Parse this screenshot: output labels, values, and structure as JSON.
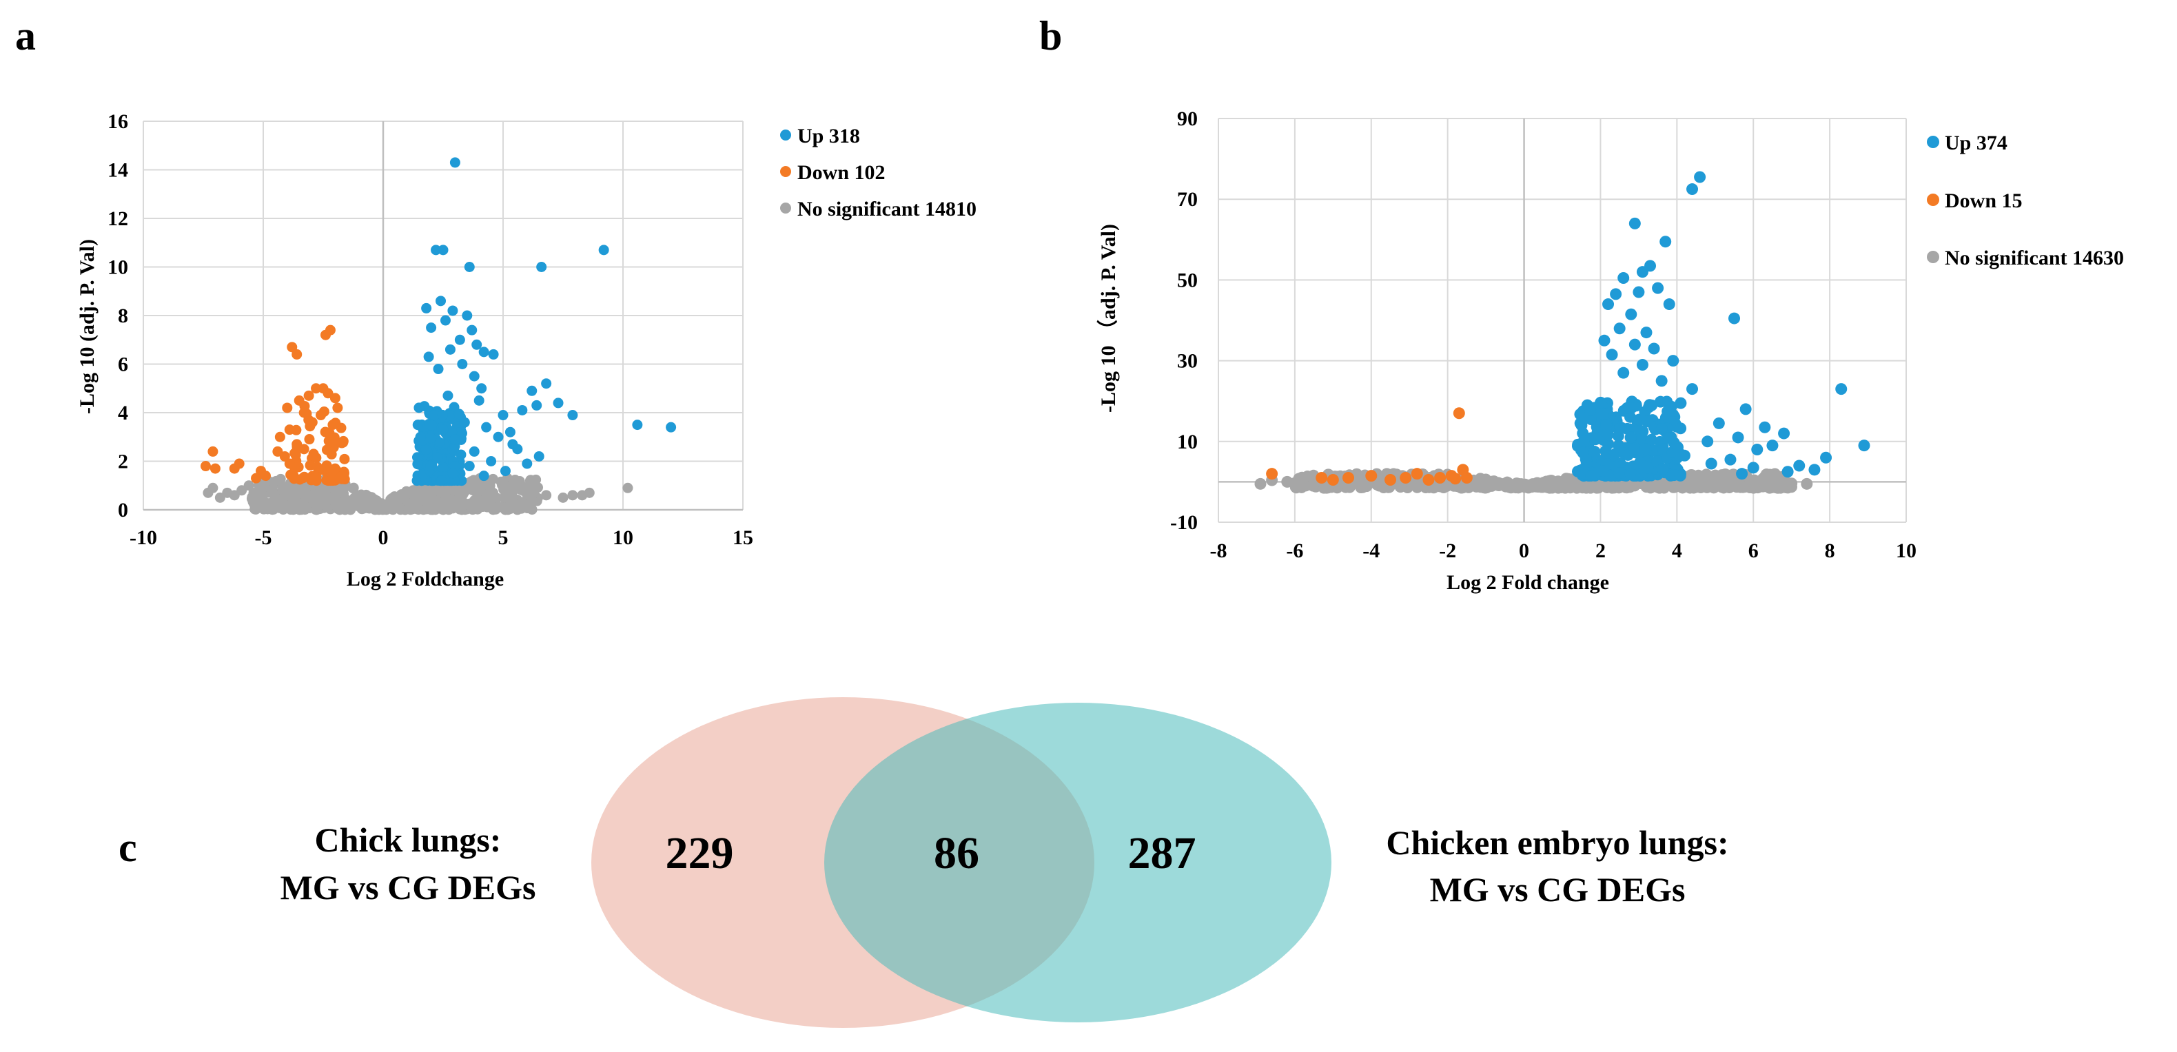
{
  "panel_labels": {
    "a": "a",
    "b": "b",
    "c": "c"
  },
  "colors": {
    "up": "#1f9ad6",
    "down": "#f37a24",
    "ns": "#a6a6a6",
    "grid": "#d9d9d9",
    "left_circle": "#e9a898",
    "right_circle": "#4dbcbc"
  },
  "chart_data": [
    {
      "type": "scatter",
      "id": "a",
      "xlabel": "Log 2 Foldchange",
      "ylabel": "-Log 10 (adj. P. Val)",
      "xlim": [
        -10,
        15
      ],
      "ylim": [
        0,
        16
      ],
      "xticks": [
        -10,
        -5,
        0,
        5,
        10,
        15
      ],
      "yticks": [
        0,
        2,
        4,
        6,
        8,
        10,
        12,
        14,
        16
      ],
      "grid": true,
      "legend_position": "right",
      "series": [
        {
          "name": "Up",
          "count": 318,
          "legend": "Up 318",
          "color": "#1f9ad6",
          "points": [
            [
              3.0,
              14.3
            ],
            [
              2.2,
              10.7
            ],
            [
              2.5,
              10.7
            ],
            [
              3.6,
              10.0
            ],
            [
              6.6,
              10.0
            ],
            [
              9.2,
              10.7
            ],
            [
              10.6,
              3.5
            ],
            [
              12.0,
              3.4
            ],
            [
              1.8,
              8.3
            ],
            [
              2.4,
              8.6
            ],
            [
              2.9,
              8.2
            ],
            [
              3.5,
              8.0
            ],
            [
              2.6,
              7.8
            ],
            [
              3.7,
              7.4
            ],
            [
              2.0,
              7.5
            ],
            [
              3.2,
              7.0
            ],
            [
              3.9,
              6.8
            ],
            [
              4.2,
              6.5
            ],
            [
              4.6,
              6.4
            ],
            [
              2.8,
              6.6
            ],
            [
              1.9,
              6.3
            ],
            [
              3.3,
              6.0
            ],
            [
              2.3,
              5.8
            ],
            [
              3.8,
              5.5
            ],
            [
              6.8,
              5.2
            ],
            [
              4.1,
              5.0
            ],
            [
              6.2,
              4.9
            ],
            [
              2.7,
              4.7
            ],
            [
              4.0,
              4.5
            ],
            [
              7.3,
              4.4
            ],
            [
              6.4,
              4.3
            ],
            [
              5.8,
              4.1
            ],
            [
              7.9,
              3.9
            ],
            [
              5.0,
              3.9
            ],
            [
              3.4,
              3.6
            ],
            [
              4.3,
              3.4
            ],
            [
              5.3,
              3.2
            ],
            [
              4.8,
              3.0
            ],
            [
              3.0,
              2.9
            ],
            [
              5.6,
              2.5
            ],
            [
              6.5,
              2.2
            ],
            [
              4.5,
              2.0
            ],
            [
              6.0,
              1.9
            ],
            [
              3.6,
              1.8
            ],
            [
              5.1,
              1.6
            ],
            [
              2.9,
              1.5
            ],
            [
              4.2,
              1.4
            ],
            [
              3.8,
              2.4
            ],
            [
              5.4,
              2.7
            ],
            [
              2.5,
              3.3
            ]
          ],
          "cluster": {
            "x": [
              1.4,
              3.3
            ],
            "y": [
              1.2,
              4.3
            ],
            "n": 220
          }
        },
        {
          "name": "Down",
          "count": 102,
          "legend": "Down 102",
          "color": "#f37a24",
          "points": [
            [
              -2.2,
              7.4
            ],
            [
              -2.4,
              7.2
            ],
            [
              -3.8,
              6.7
            ],
            [
              -3.6,
              6.4
            ],
            [
              -7.1,
              2.4
            ],
            [
              -7.4,
              1.8
            ],
            [
              -7.0,
              1.7
            ],
            [
              -6.0,
              1.9
            ],
            [
              -6.2,
              1.7
            ],
            [
              -5.1,
              1.6
            ],
            [
              -4.9,
              1.4
            ],
            [
              -5.3,
              1.3
            ],
            [
              -4.4,
              2.4
            ],
            [
              -4.1,
              2.2
            ],
            [
              -4.3,
              3.0
            ],
            [
              -3.9,
              3.3
            ],
            [
              -4.0,
              4.2
            ],
            [
              -3.5,
              4.5
            ],
            [
              -3.3,
              4.0
            ],
            [
              -3.1,
              4.7
            ],
            [
              -2.8,
              5.0
            ],
            [
              -2.5,
              5.0
            ],
            [
              -2.3,
              4.8
            ],
            [
              -2.0,
              4.6
            ],
            [
              -1.9,
              4.2
            ],
            [
              -2.6,
              3.9
            ],
            [
              -3.0,
              3.6
            ],
            [
              -2.1,
              3.5
            ],
            [
              -3.6,
              2.7
            ],
            [
              -3.3,
              2.5
            ],
            [
              -2.9,
              2.3
            ],
            [
              -3.9,
              1.9
            ]
          ],
          "cluster": {
            "x": [
              -3.9,
              -1.6
            ],
            "y": [
              1.2,
              4.3
            ],
            "n": 70
          }
        },
        {
          "name": "No significant",
          "count": 14810,
          "legend": "No significant 14810",
          "color": "#a6a6a6",
          "points": [
            [
              -7.3,
              0.7
            ],
            [
              -7.1,
              0.9
            ],
            [
              -6.8,
              0.5
            ],
            [
              -6.5,
              0.7
            ],
            [
              -6.2,
              0.6
            ],
            [
              -5.9,
              0.8
            ],
            [
              -5.6,
              1.0
            ],
            [
              -5.4,
              0.7
            ],
            [
              7.5,
              0.5
            ],
            [
              7.9,
              0.6
            ],
            [
              8.3,
              0.6
            ],
            [
              8.6,
              0.7
            ],
            [
              10.2,
              0.9
            ],
            [
              6.8,
              0.6
            ],
            [
              6.3,
              0.8
            ]
          ],
          "cluster": {
            "x": [
              -5.5,
              6.5
            ],
            "y": [
              0.0,
              1.3
            ],
            "n": 650
          }
        }
      ]
    },
    {
      "type": "scatter",
      "id": "b",
      "xlabel": "Log 2 Fold change",
      "ylabel": "-Log 10 （adj. P. Val)",
      "xlim": [
        -8,
        10
      ],
      "ylim": [
        -10,
        90
      ],
      "xticks": [
        -8,
        -6,
        -4,
        -2,
        0,
        2,
        4,
        6,
        8,
        10
      ],
      "yticks": [
        -10,
        10,
        30,
        50,
        70,
        90
      ],
      "grid": true,
      "legend_position": "right",
      "series": [
        {
          "name": "Up",
          "count": 374,
          "legend": "Up 374",
          "color": "#1f9ad6",
          "points": [
            [
              4.6,
              75.5
            ],
            [
              4.4,
              72.5
            ],
            [
              2.9,
              64.0
            ],
            [
              3.7,
              59.5
            ],
            [
              3.3,
              53.5
            ],
            [
              3.1,
              52.0
            ],
            [
              2.6,
              50.5
            ],
            [
              2.4,
              46.5
            ],
            [
              3.0,
              47.0
            ],
            [
              3.5,
              48.0
            ],
            [
              2.2,
              44.0
            ],
            [
              3.8,
              44.0
            ],
            [
              2.8,
              41.5
            ],
            [
              5.5,
              40.5
            ],
            [
              2.5,
              38.0
            ],
            [
              3.2,
              37.0
            ],
            [
              2.1,
              35.0
            ],
            [
              2.9,
              34.0
            ],
            [
              3.4,
              33.0
            ],
            [
              2.3,
              31.5
            ],
            [
              3.9,
              30.0
            ],
            [
              3.1,
              29.0
            ],
            [
              2.6,
              27.0
            ],
            [
              4.4,
              23.0
            ],
            [
              8.3,
              23.0
            ],
            [
              3.6,
              25.0
            ],
            [
              4.1,
              19.5
            ],
            [
              5.8,
              18.0
            ],
            [
              5.1,
              14.5
            ],
            [
              6.3,
              13.5
            ],
            [
              6.8,
              12.0
            ],
            [
              5.6,
              11.0
            ],
            [
              4.8,
              10.0
            ],
            [
              6.5,
              9.0
            ],
            [
              7.9,
              6.0
            ],
            [
              8.9,
              9.0
            ],
            [
              6.1,
              8.0
            ],
            [
              7.2,
              4.0
            ],
            [
              5.4,
              5.5
            ],
            [
              6.0,
              3.5
            ],
            [
              4.2,
              6.5
            ],
            [
              4.9,
              4.5
            ],
            [
              7.6,
              3.0
            ],
            [
              6.9,
              2.5
            ],
            [
              5.7,
              2.0
            ]
          ],
          "cluster": {
            "x": [
              1.4,
              4.1
            ],
            "y": [
              1.5,
              20.0
            ],
            "n": 260
          }
        },
        {
          "name": "Down",
          "count": 15,
          "legend": "Down 15",
          "color": "#f37a24",
          "points": [
            [
              -1.7,
              17.0
            ],
            [
              -6.6,
              2.0
            ],
            [
              -5.3,
              1.0
            ],
            [
              -4.0,
              1.5
            ],
            [
              -3.1,
              1.0
            ],
            [
              -2.8,
              2.0
            ],
            [
              -2.2,
              1.0
            ],
            [
              -1.6,
              3.0
            ],
            [
              -1.9,
              1.5
            ],
            [
              -1.5,
              1.0
            ],
            [
              -3.5,
              0.5
            ],
            [
              -4.6,
              1.0
            ],
            [
              -2.5,
              0.5
            ],
            [
              -1.8,
              0.8
            ],
            [
              -5.0,
              0.5
            ]
          ],
          "cluster": {
            "x": [
              -2,
              -1.9
            ],
            "y": [
              0.5,
              0.6
            ],
            "n": 0
          }
        },
        {
          "name": "No significant",
          "count": 14630,
          "legend": "No significant 14630",
          "color": "#a6a6a6",
          "points": [
            [
              -6.9,
              -0.5
            ],
            [
              -6.2,
              0.0
            ],
            [
              -5.8,
              0.3
            ],
            [
              -5.5,
              -0.3
            ],
            [
              7.4,
              -0.5
            ],
            [
              6.8,
              0.0
            ],
            [
              7.0,
              -0.4
            ],
            [
              -6.6,
              0.4
            ]
          ],
          "cluster": {
            "x": [
              -6.0,
              7.0
            ],
            "y": [
              -1.5,
              2.0
            ],
            "n": 560
          }
        }
      ]
    }
  ],
  "venn": {
    "left_label": {
      "line1": "Chick lungs:",
      "line2": "MG vs CG DEGs"
    },
    "right_label": {
      "line1": "Chicken embryo lungs:",
      "line2": "MG vs CG DEGs"
    },
    "left_only": "229",
    "overlap": "86",
    "right_only": "287"
  }
}
